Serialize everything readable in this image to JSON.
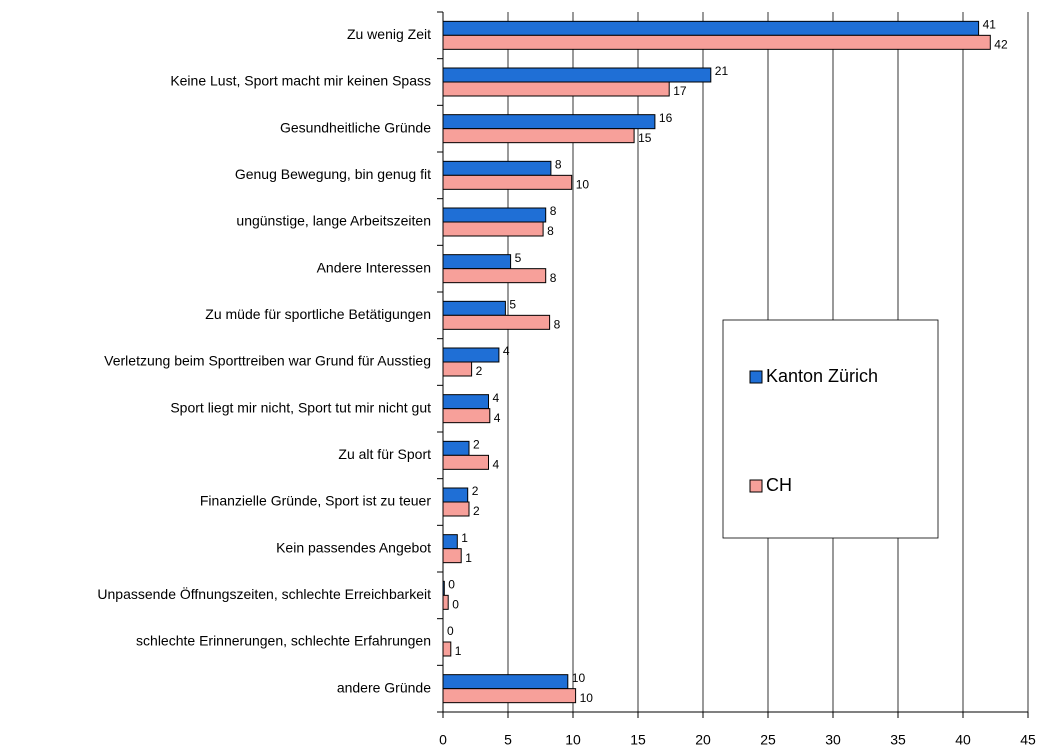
{
  "chart_data": {
    "type": "hbar",
    "categories": [
      "Zu wenig Zeit",
      "Keine Lust, Sport macht mir keinen Spass",
      "Gesundheitliche Gründe",
      "Genug Bewegung, bin genug fit",
      "ungünstige, lange Arbeitszeiten",
      "Andere Interessen",
      "Zu müde für sportliche Betätigungen",
      "Verletzung beim Sporttreiben war Grund für Ausstieg",
      "Sport liegt mir nicht, Sport tut mir nicht gut",
      "Zu alt für Sport",
      "Finanzielle Gründe, Sport ist zu teuer",
      "Kein passendes Angebot",
      "Unpassende Öffnungszeiten, schlechte Erreichbarkeit",
      "schlechte Erinnerungen, schlechte Erfahrungen",
      "andere Gründe"
    ],
    "series": [
      {
        "name": "Kanton Zürich",
        "color": "#1f6fd6",
        "values": [
          41.2,
          20.6,
          16.3,
          8.3,
          7.9,
          5.2,
          4.8,
          4.3,
          3.5,
          2.0,
          1.9,
          1.1,
          0.1,
          0,
          9.6
        ],
        "value_labels": [
          "41",
          "21",
          "16",
          "8",
          "8",
          "5",
          "5",
          "4",
          "4",
          "2",
          "2",
          "1",
          "0",
          "0",
          "10"
        ]
      },
      {
        "name": "CH",
        "color": "#f7a09a",
        "values": [
          42.1,
          17.4,
          14.7,
          9.9,
          7.7,
          7.9,
          8.2,
          2.2,
          3.6,
          3.5,
          2.0,
          1.4,
          0.4,
          0.6,
          10.2
        ],
        "value_labels": [
          "42",
          "17",
          "15",
          "10",
          "8",
          "8",
          "8",
          "2",
          "4",
          "4",
          "2",
          "1",
          "0",
          "1",
          "10"
        ]
      }
    ],
    "xlim": [
      0,
      45
    ],
    "xticks": [
      0,
      5,
      10,
      15,
      20,
      25,
      30,
      35,
      40,
      45
    ],
    "grid": true
  }
}
